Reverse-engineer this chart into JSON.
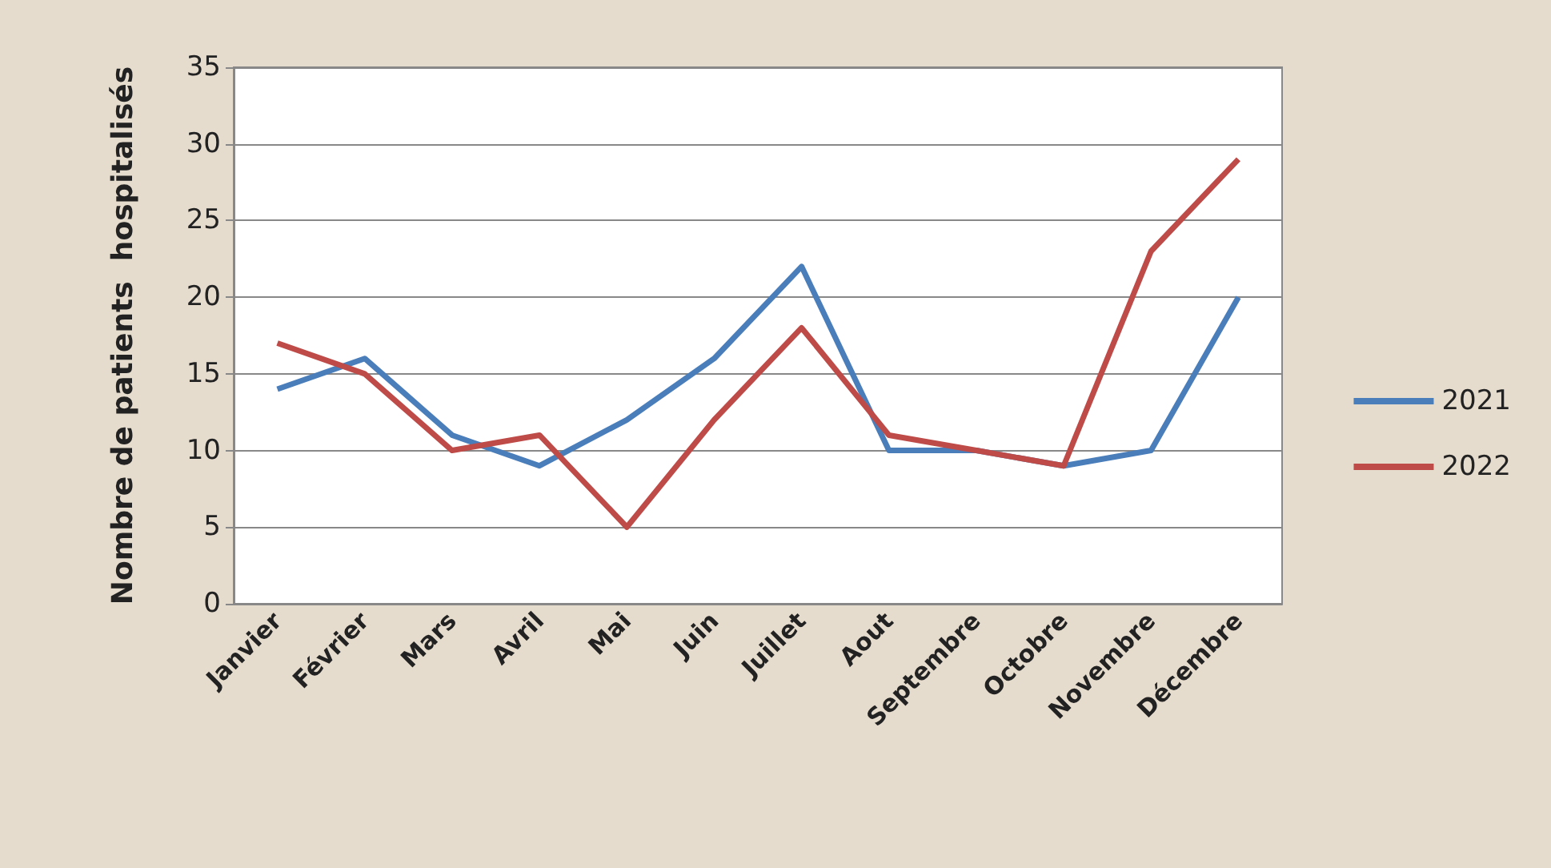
{
  "chart_data": {
    "type": "line",
    "ylabel": "Nombre de patients  hospitalisés",
    "categories": [
      "Janvier",
      "Février",
      "Mars",
      "Avril",
      "Mai",
      "Juin",
      "Juillet",
      "Aout",
      "Septembre",
      "Octobre",
      "Novembre",
      "Décembre"
    ],
    "series": [
      {
        "name": "2021",
        "color": "#4a7ebb",
        "values": [
          14,
          16,
          11,
          9,
          12,
          16,
          22,
          10,
          10,
          9,
          10,
          20
        ]
      },
      {
        "name": "2022",
        "color": "#be4b48",
        "values": [
          17,
          15,
          10,
          11,
          5,
          12,
          18,
          11,
          10,
          9,
          23,
          29
        ]
      }
    ],
    "ylim": [
      0,
      35
    ],
    "yticks": [
      0,
      5,
      10,
      15,
      20,
      25,
      30,
      35
    ],
    "grid": "y",
    "legend": "right",
    "marker": "none",
    "line_style": "solid"
  }
}
